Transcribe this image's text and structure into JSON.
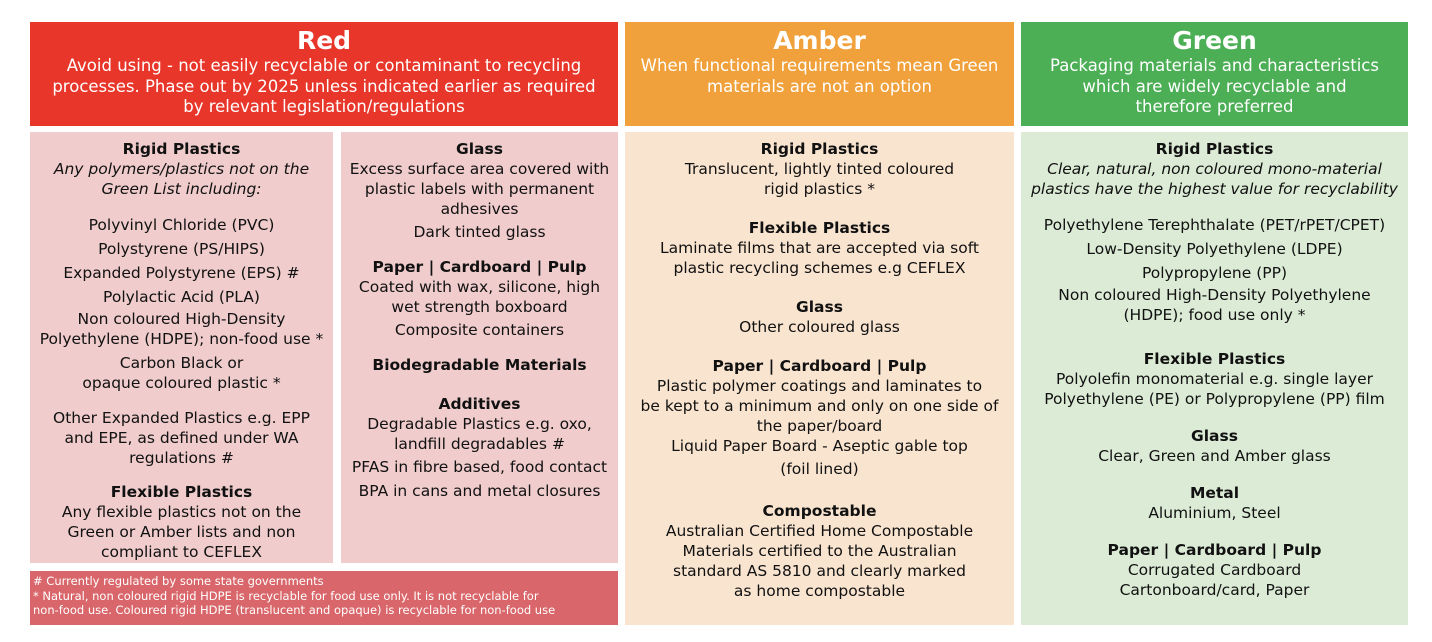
{
  "red": {
    "title": "Red",
    "desc": [
      "Avoid using - not easily recyclable or contaminant to recycling",
      "processes. Phase out by 2025 unless indicated earlier as required",
      "by relevant legislation/regulations"
    ],
    "left": {
      "rigid_heading": "Rigid Plastics",
      "rigid_intro": [
        "Any polymers/plastics not on the",
        "Green List including:"
      ],
      "items": [
        "Polyvinyl Chloride (PVC)",
        "Polystyrene (PS/HIPS)",
        "Expanded Polystyrene (EPS) #",
        "Polylactic Acid (PLA)"
      ],
      "hdpe": [
        "Non coloured High-Density",
        "Polyethylene (HDPE); non-food use *"
      ],
      "carbon": [
        "Carbon Black or",
        "opaque coloured plastic *"
      ],
      "expanded": [
        "Other Expanded Plastics e.g. EPP",
        "and EPE, as defined under WA",
        "regulations #"
      ],
      "flex_heading": "Flexible Plastics",
      "flex": [
        "Any flexible plastics not on the",
        "Green or Amber lists and non",
        "compliant to CEFLEX"
      ]
    },
    "right": {
      "glass_heading": "Glass",
      "glass": [
        "Excess surface area covered with",
        "plastic labels with permanent",
        "adhesives"
      ],
      "glass2": "Dark tinted glass",
      "paper_heading": "Paper | Cardboard | Pulp",
      "paper": [
        "Coated with wax, silicone, high",
        "wet strength boxboard"
      ],
      "paper2": "Composite containers",
      "bio_heading": "Biodegradable Materials",
      "add_heading": "Additives",
      "add": [
        "Degradable Plastics e.g. oxo,",
        "landfill degradables #"
      ],
      "pfas": "PFAS in fibre based, food contact",
      "bpa": "BPA in cans and metal closures"
    },
    "notes": [
      "# Currently regulated by some  state governments",
      "* Natural, non coloured rigid HDPE is recyclable for food use only. It is not recyclable for",
      "non-food use. Coloured rigid HDPE (translucent and opaque) is recyclable for non-food use"
    ]
  },
  "amber": {
    "title": "Amber",
    "desc": [
      "When functional requirements mean Green",
      "materials are not an option"
    ],
    "rigid_heading": "Rigid Plastics",
    "rigid": [
      "Translucent, lightly tinted coloured",
      "rigid plastics *"
    ],
    "flex_heading": "Flexible Plastics",
    "flex": [
      "Laminate films that are accepted via soft",
      "plastic recycling schemes e.g CEFLEX"
    ],
    "glass_heading": "Glass",
    "glass": "Other coloured glass",
    "paper_heading": "Paper | Cardboard | Pulp",
    "paper": [
      "Plastic polymer coatings and laminates to",
      "be kept to a minimum and only on one side of",
      "the paper/board"
    ],
    "paper2": "Liquid Paper Board - Aseptic gable top",
    "paper3": "(foil lined)",
    "comp_heading": "Compostable",
    "comp": [
      "Australian Certified Home Compostable",
      "Materials certified to the Australian",
      "standard AS 5810 and clearly marked",
      "as home compostable"
    ]
  },
  "green": {
    "title": "Green",
    "desc": [
      "Packaging materials and characteristics",
      "which are widely recyclable and",
      "therefore preferred"
    ],
    "rigid_heading": "Rigid Plastics",
    "rigid_intro": [
      "Clear, natural, non coloured mono-material",
      "plastics have the highest value for recyclability"
    ],
    "items": [
      "Polyethylene Terephthalate (PET/rPET/CPET)",
      "Low-Density Polyethylene (LDPE)",
      "Polypropylene (PP)"
    ],
    "hdpe": [
      "Non coloured High-Density Polyethylene",
      "(HDPE); food use only *"
    ],
    "flex_heading": "Flexible Plastics",
    "flex": [
      "Polyolefin monomaterial e.g. single layer",
      "Polyethylene (PE) or Polypropylene (PP) film"
    ],
    "glass_heading": "Glass",
    "glass": "Clear, Green and Amber glass",
    "metal_heading": "Metal",
    "metal": "Aluminium, Steel",
    "paper_heading": "Paper | Cardboard | Pulp",
    "paper": [
      "Corrugated Cardboard",
      "Cartonboard/card, Paper"
    ]
  },
  "colors": {
    "red_header": "#e8362a",
    "red_body": "#f0cccc",
    "red_notes": "#d9666a",
    "amber_header": "#f0a13b",
    "amber_body": "#f9e4d0",
    "green_header": "#4caf56",
    "green_body": "#dcebd6"
  }
}
